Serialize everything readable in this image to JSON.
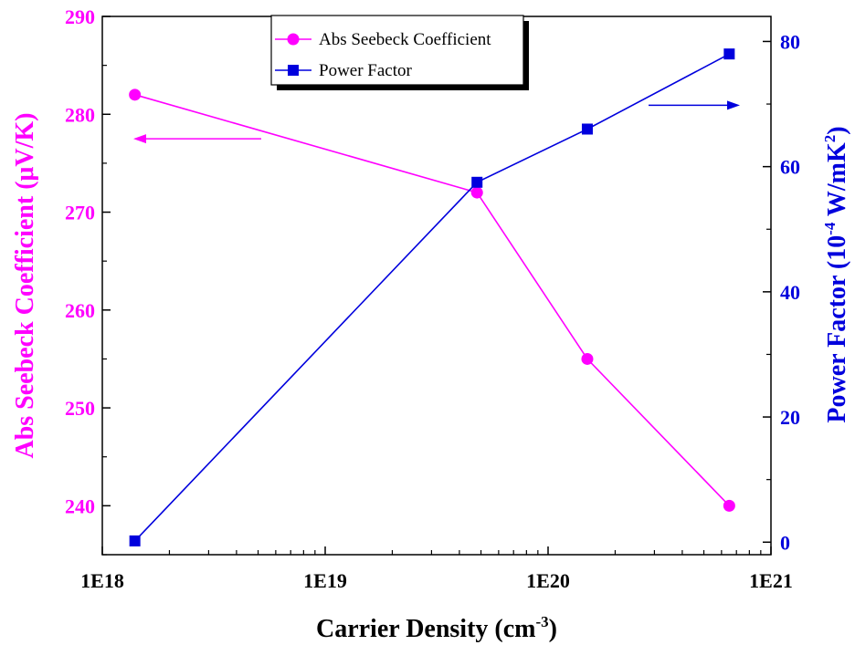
{
  "chart_data": {
    "type": "line",
    "x_scale": "log",
    "x": [
      1.4e+18,
      4.8e+19,
      1.5e+20,
      6.5e+20
    ],
    "xlim": [
      1e+18,
      1e+21
    ],
    "x_ticks": [
      "1E18",
      "1E19",
      "1E20",
      "1E21"
    ],
    "xlabel": {
      "main": "Carrier Density (cm",
      "sup": "-3",
      "tail": ")"
    },
    "y_left": {
      "label": "Abs Seebeck Coefficient (μV/K)",
      "lim": [
        235,
        290
      ],
      "ticks": [
        240,
        250,
        260,
        270,
        280,
        290
      ],
      "color": "#ff00ff"
    },
    "y_right": {
      "label": {
        "main": "Power Factor (10",
        "sup1": "-4",
        "mid": " W/mK",
        "sup2": "2",
        "tail": ")"
      },
      "lim": [
        -2,
        84
      ],
      "ticks": [
        0,
        20,
        40,
        60,
        80
      ],
      "color": "#0000dd"
    },
    "series": [
      {
        "name": "Abs Seebeck Coefficient",
        "axis": "left",
        "marker": "circle",
        "color": "#ff00ff",
        "values": [
          282,
          272,
          255,
          240
        ]
      },
      {
        "name": "Power Factor",
        "axis": "right",
        "marker": "square",
        "color": "#0000dd",
        "values": [
          0.2,
          57.5,
          66,
          78
        ]
      }
    ],
    "legend_position": "top-center",
    "grid": false
  }
}
